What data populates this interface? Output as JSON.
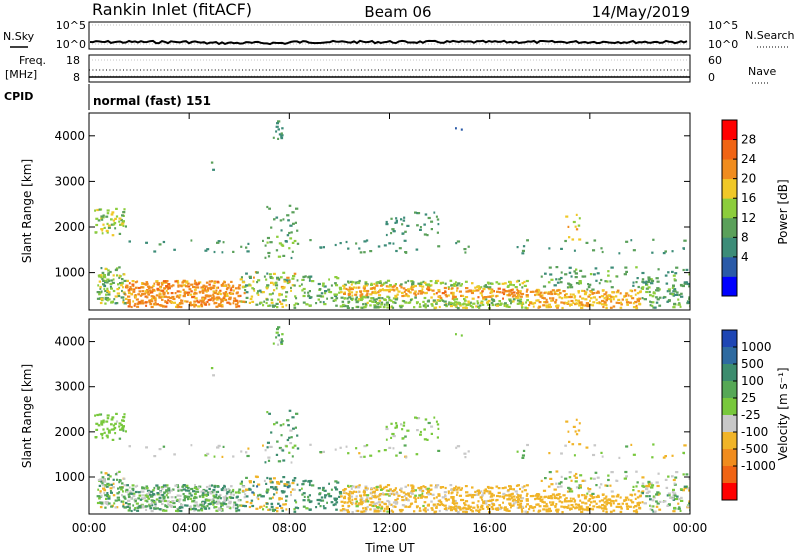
{
  "header": {
    "station": "Rankin Inlet (fitACF)",
    "beam": "Beam 06",
    "date": "14/May/2019"
  },
  "strips": {
    "nsky": {
      "label": "N.Sky",
      "tick_top": "10^5",
      "tick_bottom": "10^0"
    },
    "nsearch": {
      "label": "N.Search",
      "tick_top": "10^5",
      "tick_bottom": "10^0"
    },
    "freq": {
      "label_top": "Freq.",
      "label_bottom": "[MHz]",
      "tick_top": "18",
      "tick_bottom": "8"
    },
    "nave": {
      "label": "Nave",
      "tick_top": "60",
      "tick_bottom": "0"
    },
    "cpid": {
      "label": "CPID",
      "value": "normal (fast) 151"
    }
  },
  "chart_data": [
    {
      "type": "heatmap",
      "name": "power",
      "ylabel": "Slant Range [km]",
      "y_ticks": [
        "1000",
        "2000",
        "3000",
        "4000"
      ],
      "ylim": [
        180,
        4500
      ],
      "colorbar": {
        "label": "Power [dB]",
        "ticks": [
          "4",
          "8",
          "12",
          "16",
          "20",
          "24",
          "28"
        ],
        "colors": [
          "#0000ff",
          "#2a5aa8",
          "#3c8c78",
          "#5aa05a",
          "#8ccd3c",
          "#f0c828",
          "#f08c1e",
          "#f06414",
          "#ff0000"
        ]
      }
    },
    {
      "type": "heatmap",
      "name": "velocity",
      "ylabel": "Slant Range [km]",
      "y_ticks": [
        "1000",
        "2000",
        "3000",
        "4000"
      ],
      "ylim": [
        180,
        4500
      ],
      "xlabel": "Time UT",
      "x_ticks": [
        "00:00",
        "04:00",
        "08:00",
        "12:00",
        "16:00",
        "20:00",
        "00:00"
      ],
      "colorbar": {
        "label": "Velocity [m s⁻¹]",
        "ticks": [
          "1000",
          "500",
          "100",
          "25",
          "-25",
          "-100",
          "-500",
          "-1000"
        ],
        "colors": [
          "#1e46b4",
          "#2e6aa0",
          "#3c8c6e",
          "#56a856",
          "#78c83c",
          "#c8c8c8",
          "#f0b428",
          "#f08c1e",
          "#f06414",
          "#ff0000"
        ]
      }
    }
  ]
}
